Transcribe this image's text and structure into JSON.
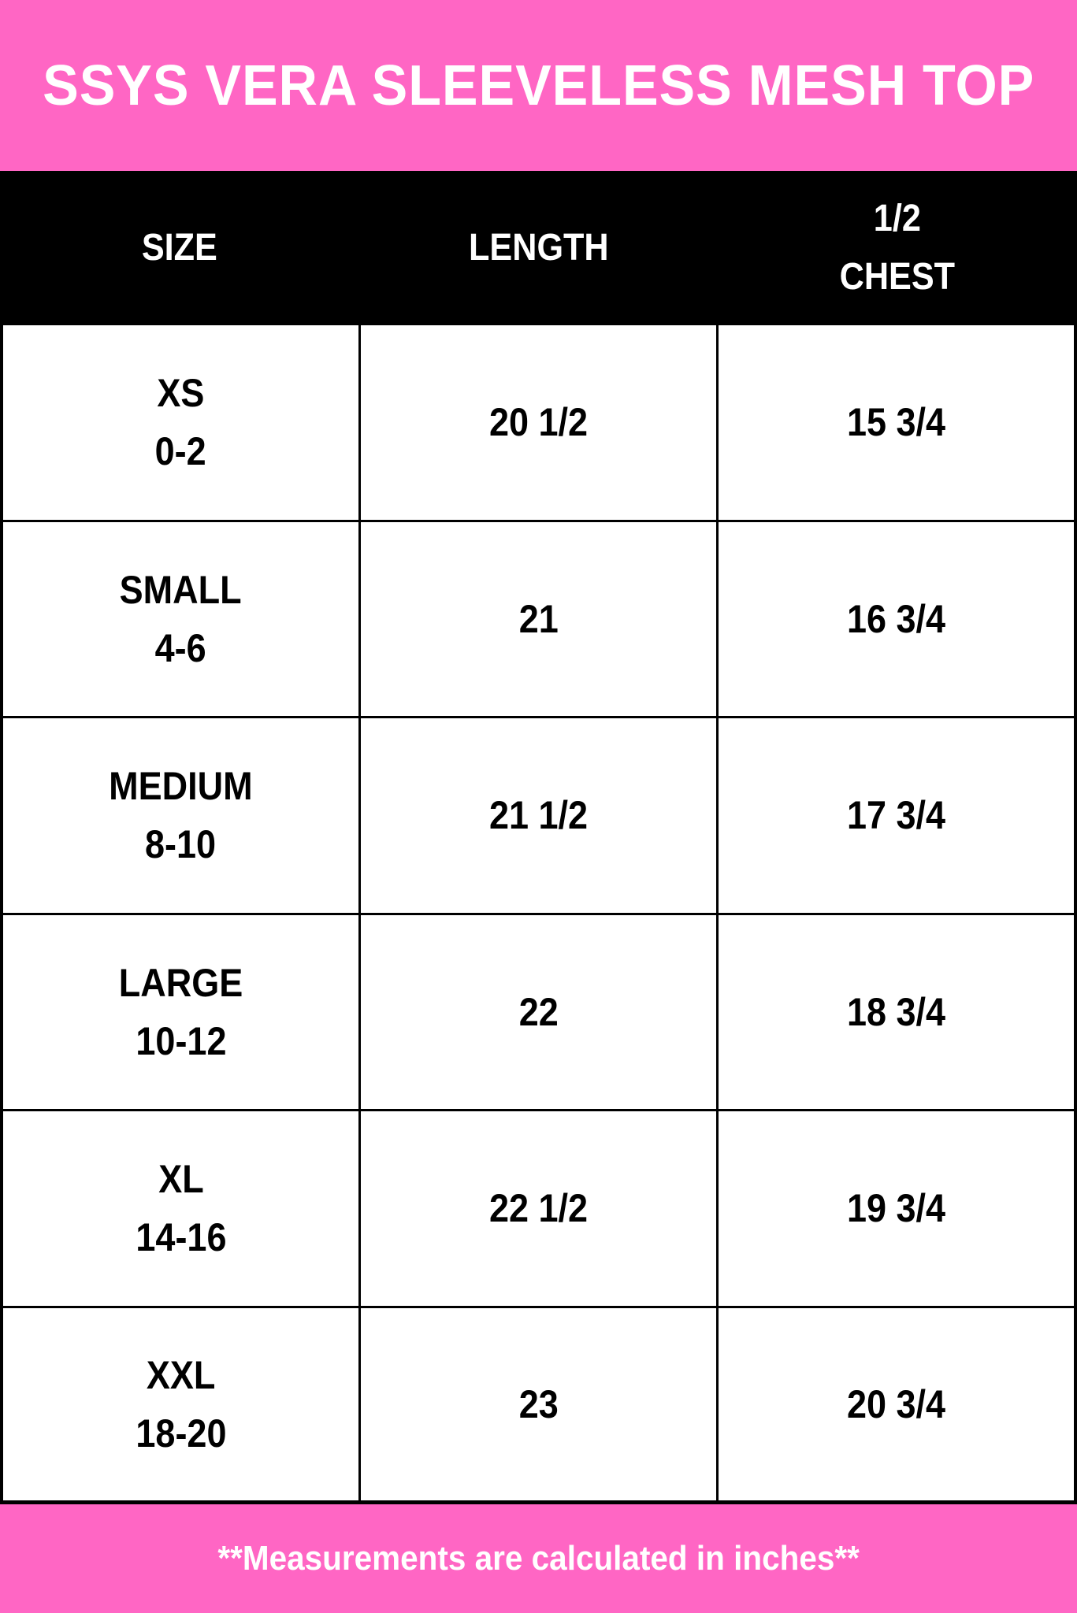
{
  "title": "SSYS VERA SLEEVELESS MESH TOP",
  "colors": {
    "accent": "#ff66c4",
    "header_bg": "#000000"
  },
  "table": {
    "headers": [
      "SIZE",
      "LENGTH",
      "1/2\nCHEST"
    ],
    "rows": [
      {
        "size": "XS",
        "range": "0-2",
        "length": "20 1/2",
        "chest": "15 3/4"
      },
      {
        "size": "SMALL",
        "range": "4-6",
        "length": "21",
        "chest": "16 3/4"
      },
      {
        "size": "MEDIUM",
        "range": "8-10",
        "length": "21 1/2",
        "chest": "17 3/4"
      },
      {
        "size": "LARGE",
        "range": "10-12",
        "length": "22",
        "chest": "18 3/4"
      },
      {
        "size": "XL",
        "range": "14-16",
        "length": "22 1/2",
        "chest": "19 3/4"
      },
      {
        "size": "XXL",
        "range": "18-20",
        "length": "23",
        "chest": "20 3/4"
      }
    ]
  },
  "footer_note": "**Measurements are calculated in inches**"
}
